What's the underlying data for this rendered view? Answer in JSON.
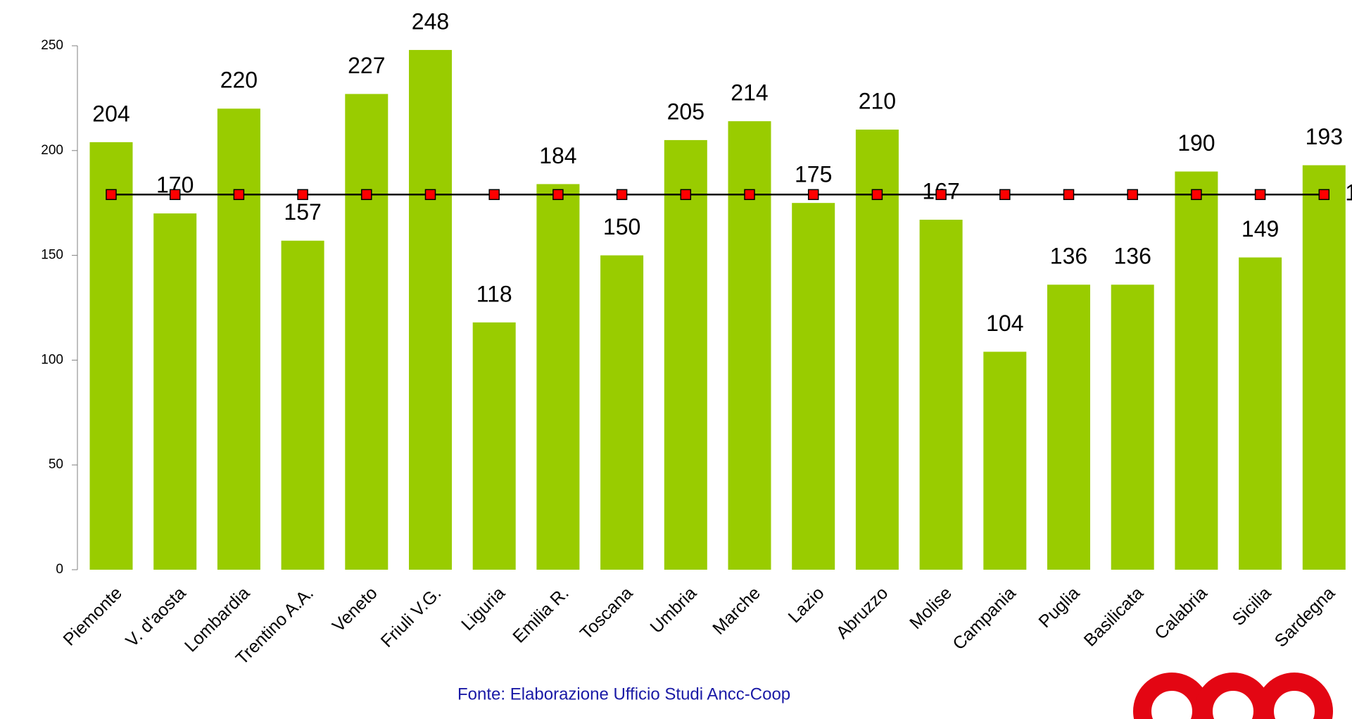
{
  "chart_data": {
    "type": "bar",
    "source": "Fonte: Elaborazione Ufficio Studi Ancc-Coop",
    "categories": [
      "Piemonte",
      "V. d'aosta",
      "Lombardia",
      "Trentino A.A.",
      "Veneto",
      "Friuli V.G.",
      "Liguria",
      "Emilia R.",
      "Toscana",
      "Umbria",
      "Marche",
      "Lazio",
      "Abruzzo",
      "Molise",
      "Campania",
      "Puglia",
      "Basilicata",
      "Calabria",
      "Sicilia",
      "Sardegna"
    ],
    "series": [
      {
        "type": "bar",
        "color": "#99cc00",
        "values": [
          204,
          170,
          220,
          157,
          227,
          248,
          118,
          184,
          150,
          205,
          214,
          175,
          210,
          167,
          104,
          136,
          136,
          190,
          149,
          193
        ]
      },
      {
        "type": "line",
        "color": "#000000",
        "marker_color": "#ff0000",
        "values": [
          179,
          179,
          179,
          179,
          179,
          179,
          179,
          179,
          179,
          179,
          179,
          179,
          179,
          179,
          179,
          179,
          179,
          179,
          179,
          179
        ]
      }
    ],
    "ylim": [
      0,
      250
    ],
    "yticks": [
      0,
      50,
      100,
      150,
      200,
      250
    ],
    "grid": false
  }
}
